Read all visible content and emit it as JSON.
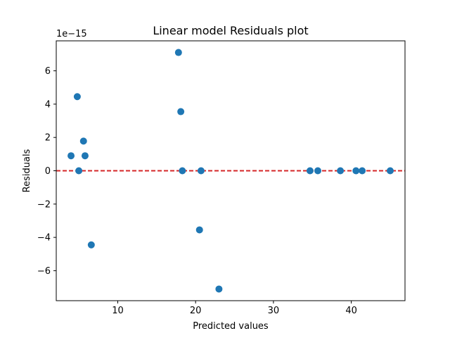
{
  "chart_data": {
    "type": "scatter",
    "title": "Linear model Residuals plot",
    "xlabel": "Predicted values",
    "ylabel": "Residuals",
    "y_offset_label": "1e−15",
    "y_scale": 1e-15,
    "xlim": [
      2.1,
      46.9
    ],
    "ylim": [
      -7.8,
      7.8
    ],
    "xticks": [
      10,
      20,
      30,
      40
    ],
    "xtick_labels": [
      "10",
      "20",
      "30",
      "40"
    ],
    "yticks": [
      -6,
      -4,
      -2,
      0,
      2,
      4,
      6
    ],
    "ytick_labels": [
      "−6",
      "−4",
      "−2",
      "0",
      "2",
      "4",
      "6"
    ],
    "grid": false,
    "legend": null,
    "reference_line": {
      "y": 0,
      "style": "dashed",
      "color": "#d62728"
    },
    "marker_color": "#1f77b4",
    "x": [
      4.0,
      4.8,
      5.0,
      5.6,
      5.8,
      6.6,
      17.8,
      18.1,
      18.3,
      20.5,
      20.7,
      23.0,
      34.7,
      35.7,
      38.6,
      40.6,
      41.4,
      45.0
    ],
    "y": [
      0.9,
      4.45,
      0.0,
      1.78,
      0.9,
      -4.45,
      7.1,
      3.55,
      0.0,
      -3.55,
      0.0,
      -7.1,
      0.0,
      0.0,
      0.0,
      0.0,
      0.0,
      0.0
    ]
  }
}
